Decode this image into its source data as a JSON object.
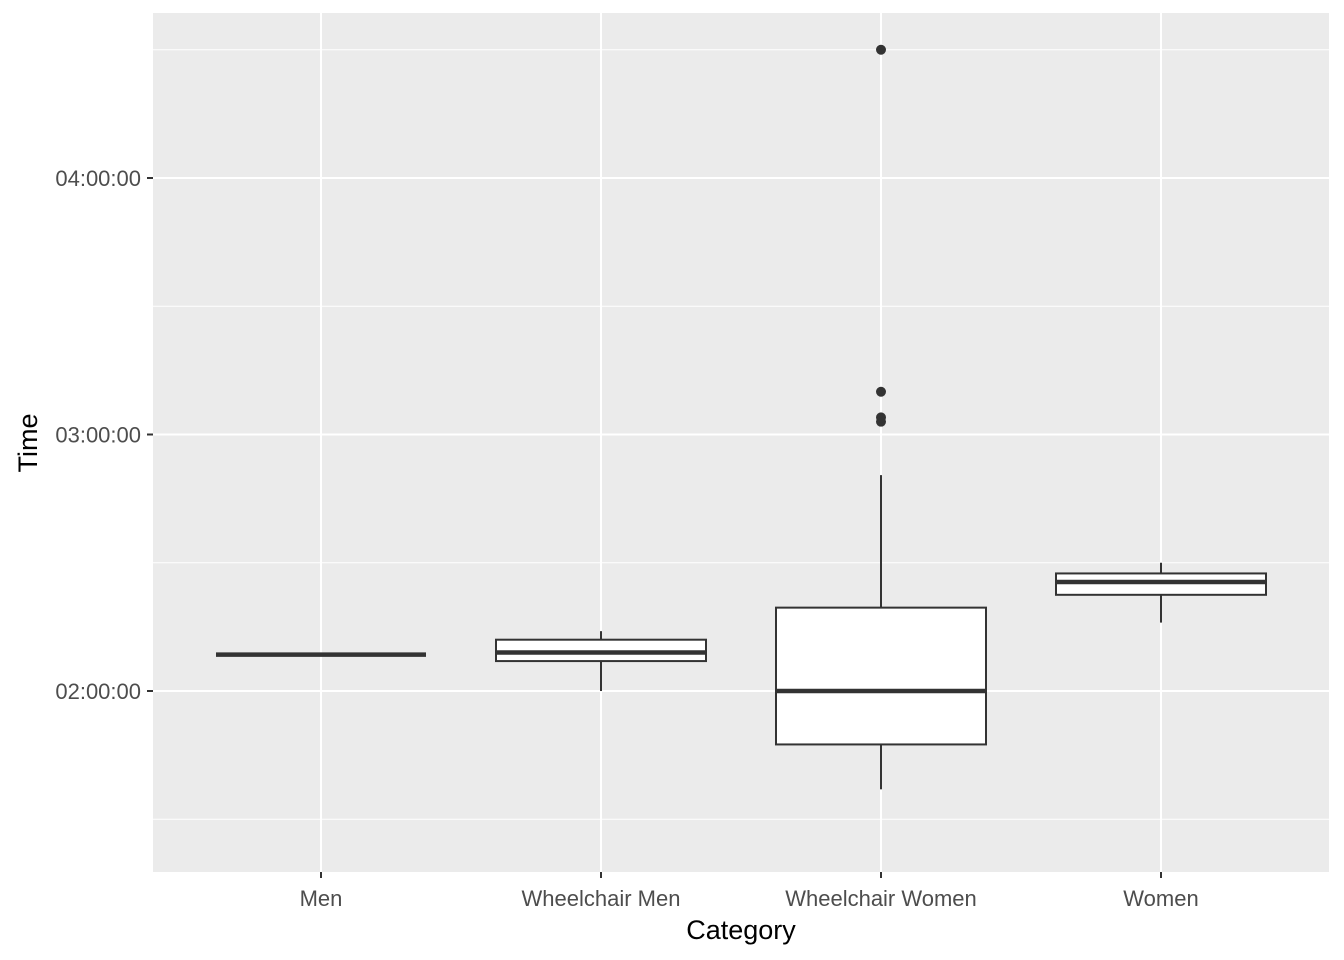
{
  "chart_data": {
    "type": "boxplot",
    "title": "",
    "xlabel": "Category",
    "ylabel": "Time",
    "x_ticks": [
      "Men",
      "Wheelchair Men",
      "Wheelchair Women",
      "Women"
    ],
    "y_ticks": [
      "02:00:00",
      "03:00:00",
      "04:00:00"
    ],
    "y_unit": "minutes",
    "ylim": [
      92,
      292
    ],
    "grid": true,
    "background": "#ebebeb",
    "gridline_color": "#ffffff",
    "box_fill": "#ffffff",
    "box_stroke": "#333333",
    "groups": [
      {
        "category": "Men",
        "whisker_low": 128.5,
        "q1": 128.5,
        "median": 128.5,
        "q3": 128.5,
        "whisker_high": 128.5,
        "outliers": []
      },
      {
        "category": "Wheelchair Men",
        "whisker_low": 120,
        "q1": 127,
        "median": 129,
        "q3": 132,
        "whisker_high": 134,
        "outliers": []
      },
      {
        "category": "Wheelchair Women",
        "whisker_low": 97,
        "q1": 107.5,
        "median": 120,
        "q3": 139.5,
        "whisker_high": 170.5,
        "outliers": [
          183,
          184,
          190,
          270
        ]
      },
      {
        "category": "Women",
        "whisker_low": 136,
        "q1": 142.5,
        "median": 145.5,
        "q3": 147.5,
        "whisker_high": 150,
        "outliers": []
      }
    ]
  }
}
